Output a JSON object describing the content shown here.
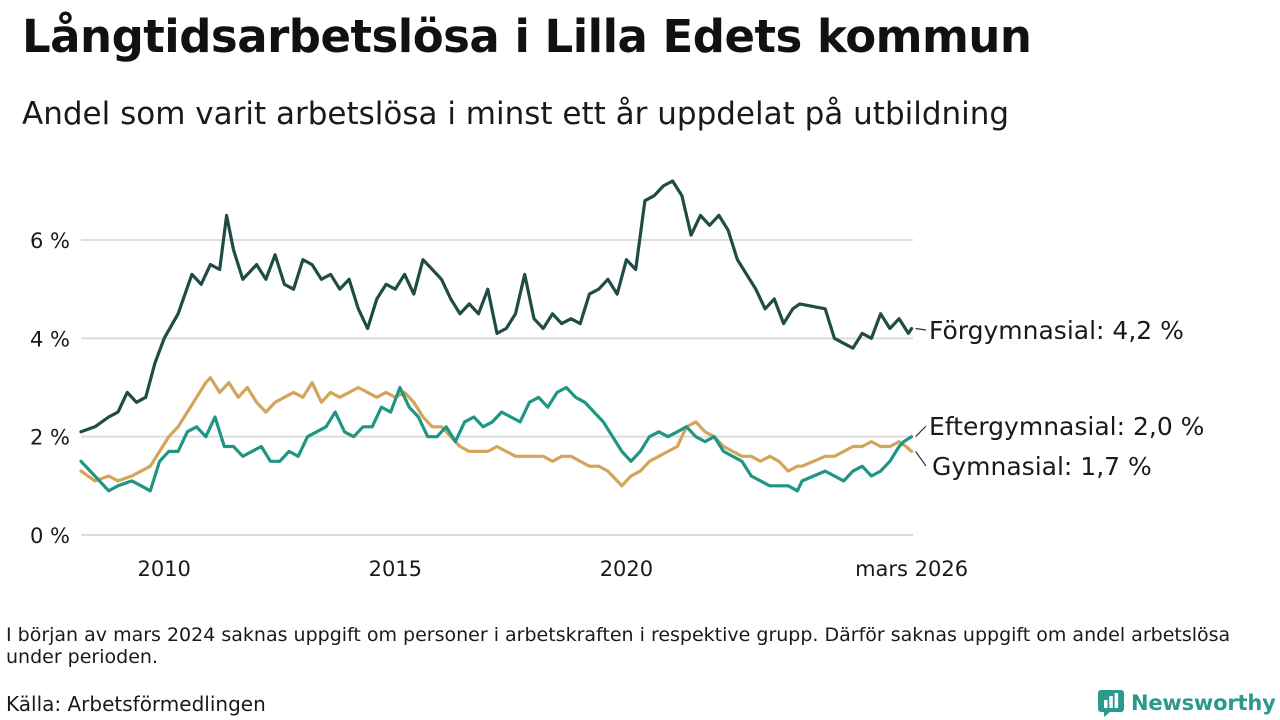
{
  "title": "Långtidsarbetslösa i Lilla Edets kommun",
  "subtitle": "Andel som varit arbetslösa i minst ett år uppdelat på utbildning",
  "footnote": "I början av mars 2024 saknas uppgift om personer i arbetskraften i respektive grupp. Därför saknas uppgift om andel arbetslösa under perioden.",
  "source": "Källa: Arbetsförmedlingen",
  "logo": "Newsworthy",
  "colors": {
    "forgymnasial": "#1f4d46",
    "eftergymnasial": "#1e9683",
    "gymnasial": "#d4a45a",
    "grid": "#dddddd",
    "text": "#1a1a1a",
    "brand": "#2b9a8c"
  },
  "chart_data": {
    "type": "line",
    "title": "Långtidsarbetslösa i Lilla Edets kommun",
    "xlabel": "",
    "ylabel": "",
    "xlim": [
      2008.2,
      2026.2
    ],
    "ylim": [
      0,
      7.5
    ],
    "y_ticks": [
      0,
      2,
      4,
      6
    ],
    "y_tick_labels": [
      "0 %",
      "2 %",
      "4 %",
      "6 %"
    ],
    "x_ticks": [
      2010,
      2015,
      2020,
      2026.17
    ],
    "x_tick_labels": [
      "2010",
      "2015",
      "2020",
      "mars 2026"
    ],
    "grid": true,
    "gap": [
      2023.9,
      2024.3
    ],
    "series": [
      {
        "name": "Förgymnasial",
        "label": "Förgymnasial: 4,2 %",
        "color_key": "forgymnasial",
        "points": [
          [
            2008.2,
            2.1
          ],
          [
            2008.5,
            2.2
          ],
          [
            2008.8,
            2.4
          ],
          [
            2009.0,
            2.5
          ],
          [
            2009.2,
            2.9
          ],
          [
            2009.4,
            2.7
          ],
          [
            2009.6,
            2.8
          ],
          [
            2009.8,
            3.5
          ],
          [
            2010.0,
            4.0
          ],
          [
            2010.3,
            4.5
          ],
          [
            2010.6,
            5.3
          ],
          [
            2010.8,
            5.1
          ],
          [
            2011.0,
            5.5
          ],
          [
            2011.2,
            5.4
          ],
          [
            2011.35,
            6.5
          ],
          [
            2011.5,
            5.8
          ],
          [
            2011.7,
            5.2
          ],
          [
            2012.0,
            5.5
          ],
          [
            2012.2,
            5.2
          ],
          [
            2012.4,
            5.7
          ],
          [
            2012.6,
            5.1
          ],
          [
            2012.8,
            5.0
          ],
          [
            2013.0,
            5.6
          ],
          [
            2013.2,
            5.5
          ],
          [
            2013.4,
            5.2
          ],
          [
            2013.6,
            5.3
          ],
          [
            2013.8,
            5.0
          ],
          [
            2014.0,
            5.2
          ],
          [
            2014.2,
            4.6
          ],
          [
            2014.4,
            4.2
          ],
          [
            2014.6,
            4.8
          ],
          [
            2014.8,
            5.1
          ],
          [
            2015.0,
            5.0
          ],
          [
            2015.2,
            5.3
          ],
          [
            2015.4,
            4.9
          ],
          [
            2015.6,
            5.6
          ],
          [
            2015.8,
            5.4
          ],
          [
            2016.0,
            5.2
          ],
          [
            2016.2,
            4.8
          ],
          [
            2016.4,
            4.5
          ],
          [
            2016.6,
            4.7
          ],
          [
            2016.8,
            4.5
          ],
          [
            2017.0,
            5.0
          ],
          [
            2017.2,
            4.1
          ],
          [
            2017.4,
            4.2
          ],
          [
            2017.6,
            4.5
          ],
          [
            2017.8,
            5.3
          ],
          [
            2018.0,
            4.4
          ],
          [
            2018.2,
            4.2
          ],
          [
            2018.4,
            4.5
          ],
          [
            2018.6,
            4.3
          ],
          [
            2018.8,
            4.4
          ],
          [
            2019.0,
            4.3
          ],
          [
            2019.2,
            4.9
          ],
          [
            2019.4,
            5.0
          ],
          [
            2019.6,
            5.2
          ],
          [
            2019.8,
            4.9
          ],
          [
            2020.0,
            5.6
          ],
          [
            2020.2,
            5.4
          ],
          [
            2020.4,
            6.8
          ],
          [
            2020.6,
            6.9
          ],
          [
            2020.8,
            7.1
          ],
          [
            2021.0,
            7.2
          ],
          [
            2021.2,
            6.9
          ],
          [
            2021.4,
            6.1
          ],
          [
            2021.6,
            6.5
          ],
          [
            2021.8,
            6.3
          ],
          [
            2022.0,
            6.5
          ],
          [
            2022.2,
            6.2
          ],
          [
            2022.4,
            5.6
          ],
          [
            2022.6,
            5.3
          ],
          [
            2022.8,
            5.0
          ],
          [
            2023.0,
            4.6
          ],
          [
            2023.2,
            4.8
          ],
          [
            2023.4,
            4.3
          ],
          [
            2023.6,
            4.6
          ],
          [
            2023.75,
            4.7
          ],
          [
            2024.3,
            4.6
          ],
          [
            2024.5,
            4.0
          ],
          [
            2024.7,
            3.9
          ],
          [
            2024.9,
            3.8
          ],
          [
            2025.1,
            4.1
          ],
          [
            2025.3,
            4.0
          ],
          [
            2025.5,
            4.5
          ],
          [
            2025.7,
            4.2
          ],
          [
            2025.9,
            4.4
          ],
          [
            2026.1,
            4.1
          ],
          [
            2026.17,
            4.2
          ]
        ]
      },
      {
        "name": "Eftergymnasial",
        "label": "Eftergymnasial: 2,0 %",
        "color_key": "eftergymnasial",
        "points": [
          [
            2008.2,
            1.5
          ],
          [
            2008.5,
            1.2
          ],
          [
            2008.8,
            0.9
          ],
          [
            2009.0,
            1.0
          ],
          [
            2009.3,
            1.1
          ],
          [
            2009.5,
            1.0
          ],
          [
            2009.7,
            0.9
          ],
          [
            2009.9,
            1.5
          ],
          [
            2010.1,
            1.7
          ],
          [
            2010.3,
            1.7
          ],
          [
            2010.5,
            2.1
          ],
          [
            2010.7,
            2.2
          ],
          [
            2010.9,
            2.0
          ],
          [
            2011.1,
            2.4
          ],
          [
            2011.3,
            1.8
          ],
          [
            2011.5,
            1.8
          ],
          [
            2011.7,
            1.6
          ],
          [
            2011.9,
            1.7
          ],
          [
            2012.1,
            1.8
          ],
          [
            2012.3,
            1.5
          ],
          [
            2012.5,
            1.5
          ],
          [
            2012.7,
            1.7
          ],
          [
            2012.9,
            1.6
          ],
          [
            2013.1,
            2.0
          ],
          [
            2013.3,
            2.1
          ],
          [
            2013.5,
            2.2
          ],
          [
            2013.7,
            2.5
          ],
          [
            2013.9,
            2.1
          ],
          [
            2014.1,
            2.0
          ],
          [
            2014.3,
            2.2
          ],
          [
            2014.5,
            2.2
          ],
          [
            2014.7,
            2.6
          ],
          [
            2014.9,
            2.5
          ],
          [
            2015.1,
            3.0
          ],
          [
            2015.3,
            2.6
          ],
          [
            2015.5,
            2.4
          ],
          [
            2015.7,
            2.0
          ],
          [
            2015.9,
            2.0
          ],
          [
            2016.1,
            2.2
          ],
          [
            2016.3,
            1.9
          ],
          [
            2016.5,
            2.3
          ],
          [
            2016.7,
            2.4
          ],
          [
            2016.9,
            2.2
          ],
          [
            2017.1,
            2.3
          ],
          [
            2017.3,
            2.5
          ],
          [
            2017.5,
            2.4
          ],
          [
            2017.7,
            2.3
          ],
          [
            2017.9,
            2.7
          ],
          [
            2018.1,
            2.8
          ],
          [
            2018.3,
            2.6
          ],
          [
            2018.5,
            2.9
          ],
          [
            2018.7,
            3.0
          ],
          [
            2018.9,
            2.8
          ],
          [
            2019.1,
            2.7
          ],
          [
            2019.3,
            2.5
          ],
          [
            2019.5,
            2.3
          ],
          [
            2019.7,
            2.0
          ],
          [
            2019.9,
            1.7
          ],
          [
            2020.1,
            1.5
          ],
          [
            2020.3,
            1.7
          ],
          [
            2020.5,
            2.0
          ],
          [
            2020.7,
            2.1
          ],
          [
            2020.9,
            2.0
          ],
          [
            2021.1,
            2.1
          ],
          [
            2021.3,
            2.2
          ],
          [
            2021.5,
            2.0
          ],
          [
            2021.7,
            1.9
          ],
          [
            2021.9,
            2.0
          ],
          [
            2022.1,
            1.7
          ],
          [
            2022.3,
            1.6
          ],
          [
            2022.5,
            1.5
          ],
          [
            2022.7,
            1.2
          ],
          [
            2022.9,
            1.1
          ],
          [
            2023.1,
            1.0
          ],
          [
            2023.3,
            1.0
          ],
          [
            2023.5,
            1.0
          ],
          [
            2023.7,
            0.9
          ],
          [
            2023.8,
            1.1
          ],
          [
            2024.3,
            1.3
          ],
          [
            2024.5,
            1.2
          ],
          [
            2024.7,
            1.1
          ],
          [
            2024.9,
            1.3
          ],
          [
            2025.1,
            1.4
          ],
          [
            2025.3,
            1.2
          ],
          [
            2025.5,
            1.3
          ],
          [
            2025.7,
            1.5
          ],
          [
            2025.9,
            1.8
          ],
          [
            2026.0,
            1.9
          ],
          [
            2026.17,
            2.0
          ]
        ]
      },
      {
        "name": "Gymnasial",
        "label": "Gymnasial: 1,7 %",
        "color_key": "gymnasial",
        "points": [
          [
            2008.2,
            1.3
          ],
          [
            2008.5,
            1.1
          ],
          [
            2008.8,
            1.2
          ],
          [
            2009.0,
            1.1
          ],
          [
            2009.3,
            1.2
          ],
          [
            2009.5,
            1.3
          ],
          [
            2009.7,
            1.4
          ],
          [
            2009.9,
            1.7
          ],
          [
            2010.1,
            2.0
          ],
          [
            2010.3,
            2.2
          ],
          [
            2010.5,
            2.5
          ],
          [
            2010.7,
            2.8
          ],
          [
            2010.9,
            3.1
          ],
          [
            2011.0,
            3.2
          ],
          [
            2011.2,
            2.9
          ],
          [
            2011.4,
            3.1
          ],
          [
            2011.6,
            2.8
          ],
          [
            2011.8,
            3.0
          ],
          [
            2012.0,
            2.7
          ],
          [
            2012.2,
            2.5
          ],
          [
            2012.4,
            2.7
          ],
          [
            2012.6,
            2.8
          ],
          [
            2012.8,
            2.9
          ],
          [
            2013.0,
            2.8
          ],
          [
            2013.2,
            3.1
          ],
          [
            2013.4,
            2.7
          ],
          [
            2013.6,
            2.9
          ],
          [
            2013.8,
            2.8
          ],
          [
            2014.0,
            2.9
          ],
          [
            2014.2,
            3.0
          ],
          [
            2014.4,
            2.9
          ],
          [
            2014.6,
            2.8
          ],
          [
            2014.8,
            2.9
          ],
          [
            2015.0,
            2.8
          ],
          [
            2015.2,
            2.9
          ],
          [
            2015.4,
            2.7
          ],
          [
            2015.6,
            2.4
          ],
          [
            2015.8,
            2.2
          ],
          [
            2016.0,
            2.2
          ],
          [
            2016.2,
            2.0
          ],
          [
            2016.4,
            1.8
          ],
          [
            2016.6,
            1.7
          ],
          [
            2016.8,
            1.7
          ],
          [
            2017.0,
            1.7
          ],
          [
            2017.2,
            1.8
          ],
          [
            2017.4,
            1.7
          ],
          [
            2017.6,
            1.6
          ],
          [
            2017.8,
            1.6
          ],
          [
            2018.0,
            1.6
          ],
          [
            2018.2,
            1.6
          ],
          [
            2018.4,
            1.5
          ],
          [
            2018.6,
            1.6
          ],
          [
            2018.8,
            1.6
          ],
          [
            2019.0,
            1.5
          ],
          [
            2019.2,
            1.4
          ],
          [
            2019.4,
            1.4
          ],
          [
            2019.6,
            1.3
          ],
          [
            2019.8,
            1.1
          ],
          [
            2019.9,
            1.0
          ],
          [
            2020.1,
            1.2
          ],
          [
            2020.3,
            1.3
          ],
          [
            2020.5,
            1.5
          ],
          [
            2020.7,
            1.6
          ],
          [
            2020.9,
            1.7
          ],
          [
            2021.1,
            1.8
          ],
          [
            2021.3,
            2.2
          ],
          [
            2021.5,
            2.3
          ],
          [
            2021.7,
            2.1
          ],
          [
            2021.9,
            2.0
          ],
          [
            2022.1,
            1.8
          ],
          [
            2022.3,
            1.7
          ],
          [
            2022.5,
            1.6
          ],
          [
            2022.7,
            1.6
          ],
          [
            2022.9,
            1.5
          ],
          [
            2023.1,
            1.6
          ],
          [
            2023.3,
            1.5
          ],
          [
            2023.5,
            1.3
          ],
          [
            2023.7,
            1.4
          ],
          [
            2023.8,
            1.4
          ],
          [
            2024.3,
            1.6
          ],
          [
            2024.5,
            1.6
          ],
          [
            2024.7,
            1.7
          ],
          [
            2024.9,
            1.8
          ],
          [
            2025.1,
            1.8
          ],
          [
            2025.3,
            1.9
          ],
          [
            2025.5,
            1.8
          ],
          [
            2025.7,
            1.8
          ],
          [
            2025.9,
            1.9
          ],
          [
            2026.05,
            1.8
          ],
          [
            2026.17,
            1.7
          ]
        ]
      }
    ]
  }
}
